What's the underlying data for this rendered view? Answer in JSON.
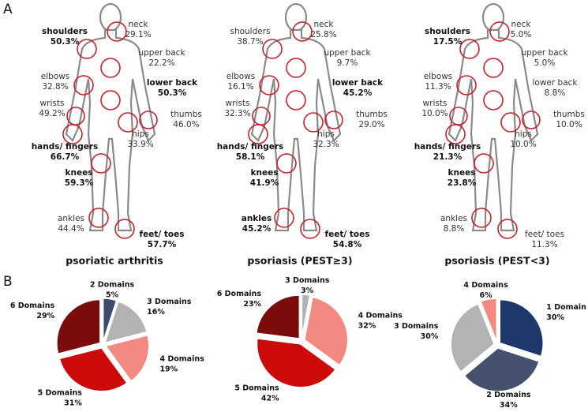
{
  "panel_labels": [
    "A",
    "B"
  ],
  "panel_a": [
    {
      "title": "psoriatic arthritis",
      "joints": [
        {
          "name": "shoulders",
          "value": "50.3%",
          "bold": true
        },
        {
          "name": "neck",
          "value": "29.1%",
          "bold": false
        },
        {
          "name": "upper back",
          "value": "22.2%",
          "bold": false
        },
        {
          "name": "elbows",
          "value": "32.8%",
          "bold": false
        },
        {
          "name": "lower back",
          "value": "50.3%",
          "bold": true
        },
        {
          "name": "wrists",
          "value": "49.2%",
          "bold": false
        },
        {
          "name": "thumbs",
          "value": "46.0%",
          "bold": false
        },
        {
          "name": "hips",
          "value": "33.9%",
          "bold": false
        },
        {
          "name": "hands/ fingers",
          "value": "66.7%",
          "bold": true
        },
        {
          "name": "knees",
          "value": "59.3%",
          "bold": true
        },
        {
          "name": "ankles",
          "value": "44.4%",
          "bold": false
        },
        {
          "name": "feet/ toes",
          "value": "57.7%",
          "bold": true
        }
      ]
    },
    {
      "title": "psoriasis (PEST≥3)",
      "joints": [
        {
          "name": "shoulders",
          "value": "38.7%",
          "bold": false
        },
        {
          "name": "neck",
          "value": "25.8%",
          "bold": false
        },
        {
          "name": "upper back",
          "value": "9.7%",
          "bold": false
        },
        {
          "name": "elbows",
          "value": "16.1%",
          "bold": false
        },
        {
          "name": "lower back",
          "value": "45.2%",
          "bold": true
        },
        {
          "name": "wrists",
          "value": "32.3%",
          "bold": false
        },
        {
          "name": "thumbs",
          "value": "29.0%",
          "bold": false
        },
        {
          "name": "hips",
          "value": "32.3%",
          "bold": false
        },
        {
          "name": "hands/ fingers",
          "value": "58.1%",
          "bold": true
        },
        {
          "name": "knees",
          "value": "41.9%",
          "bold": true
        },
        {
          "name": "ankles",
          "value": "45.2%",
          "bold": true
        },
        {
          "name": "feet/ toes",
          "value": "54.8%",
          "bold": true
        }
      ]
    },
    {
      "title": "psoriasis (PEST<3)",
      "joints": [
        {
          "name": "shoulders",
          "value": "17.5%",
          "bold": true
        },
        {
          "name": "neck",
          "value": "5.0%",
          "bold": false
        },
        {
          "name": "upper back",
          "value": "5.0%",
          "bold": false
        },
        {
          "name": "elbows",
          "value": "11.3%",
          "bold": false
        },
        {
          "name": "lower back",
          "value": "8.8%",
          "bold": false
        },
        {
          "name": "wrists",
          "value": "10.0%",
          "bold": false
        },
        {
          "name": "thumbs",
          "value": "10.0%",
          "bold": false
        },
        {
          "name": "hips",
          "value": "10.0%",
          "bold": false
        },
        {
          "name": "hands/ fingers",
          "value": "21.3%",
          "bold": true
        },
        {
          "name": "knees",
          "value": "23.8%",
          "bold": true
        },
        {
          "name": "ankles",
          "value": "8.8%",
          "bold": false
        },
        {
          "name": "feet/ toes",
          "value": "11.3%",
          "bold": false
        }
      ]
    }
  ],
  "chart_data": [
    {
      "type": "pie",
      "categories": [
        "2 Domains",
        "3 Domains",
        "4 Domains",
        "5 Domains",
        "6 Domains"
      ],
      "values": [
        5,
        16,
        19,
        31,
        29
      ],
      "value_labels": [
        "5%",
        "16%",
        "19%",
        "31%",
        "29%"
      ],
      "colors": [
        "#3d4c6e",
        "#b3b3b3",
        "#f28a82",
        "#cc0a0a",
        "#7a0c0c"
      ]
    },
    {
      "type": "pie",
      "categories": [
        "3 Domains",
        "4 Domains",
        "5 Domains",
        "6 Domains"
      ],
      "values": [
        3,
        32,
        42,
        23
      ],
      "value_labels": [
        "3%",
        "32%",
        "42%",
        "23%"
      ],
      "colors": [
        "#b3b3b3",
        "#f28a82",
        "#cc0a0a",
        "#7a0c0c"
      ]
    },
    {
      "type": "pie",
      "categories": [
        "1 Domain",
        "2 Domains",
        "3 Domains",
        "4 Domains"
      ],
      "values": [
        30,
        34,
        30,
        6
      ],
      "value_labels": [
        "30%",
        "34%",
        "30%",
        "6%"
      ],
      "colors": [
        "#1e386b",
        "#44526e",
        "#b3b3b3",
        "#f28a82"
      ]
    }
  ]
}
